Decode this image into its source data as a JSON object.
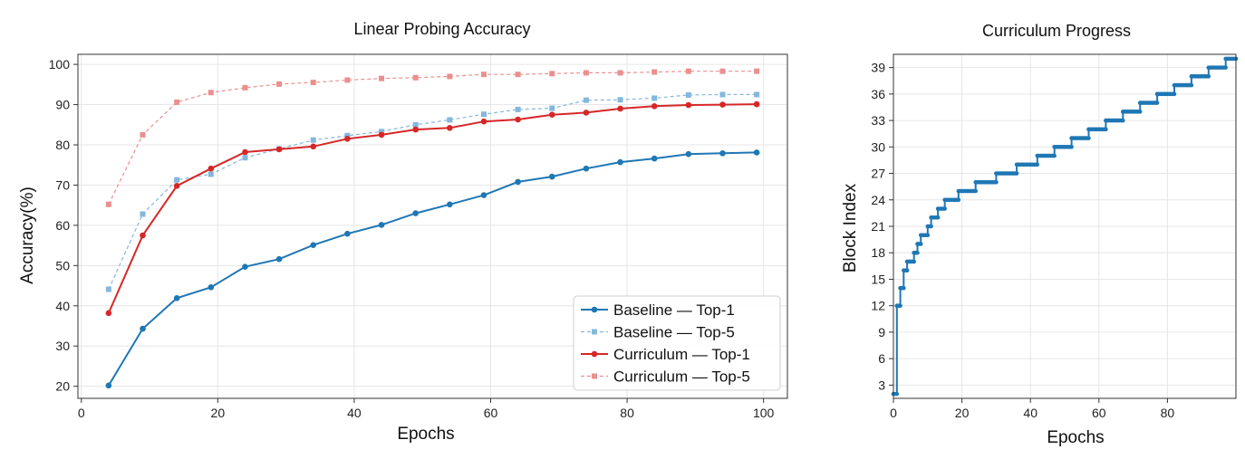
{
  "chart_data": [
    {
      "type": "line",
      "title": "Linear Probing Accuracy",
      "xlabel": "Epochs",
      "ylabel": "Accuracy(%)",
      "xlim": [
        -0.5,
        103.5
      ],
      "ylim": [
        17,
        102.5
      ],
      "xticks": [
        0,
        20,
        40,
        60,
        80,
        100
      ],
      "yticks": [
        20,
        30,
        40,
        50,
        60,
        70,
        80,
        90,
        100
      ],
      "grid": true,
      "legend_position": "bottom-right",
      "x": [
        4,
        9,
        14,
        19,
        24,
        29,
        34,
        39,
        44,
        49,
        54,
        59,
        64,
        69,
        74,
        79,
        84,
        89,
        94,
        99
      ],
      "series": [
        {
          "name": "Baseline — Top-1",
          "color": "#1f77b4",
          "style": "solid",
          "marker": "circle",
          "values": [
            20.2,
            34.3,
            41.9,
            44.6,
            49.7,
            51.6,
            55.1,
            57.9,
            60.1,
            63.0,
            65.2,
            67.5,
            70.8,
            72.1,
            74.1,
            75.7,
            76.6,
            77.7,
            77.9,
            78.1
          ]
        },
        {
          "name": "Baseline — Top-5",
          "color": "#84b7dc",
          "style": "dashed",
          "marker": "square",
          "values": [
            44.1,
            62.8,
            71.3,
            72.7,
            76.8,
            79.0,
            81.2,
            82.3,
            83.3,
            85.0,
            86.2,
            87.6,
            88.8,
            89.1,
            91.1,
            91.2,
            91.6,
            92.4,
            92.5,
            92.5
          ]
        },
        {
          "name": "Curriculum — Top-1",
          "color": "#d62728",
          "style": "solid",
          "marker": "circle",
          "values": [
            38.2,
            57.5,
            69.8,
            74.1,
            78.2,
            78.9,
            79.6,
            81.5,
            82.5,
            83.8,
            84.2,
            85.8,
            86.3,
            87.5,
            88.0,
            89.0,
            89.6,
            89.9,
            90.0,
            90.1
          ]
        },
        {
          "name": "Curriculum — Top-5",
          "color": "#ea8f8f",
          "style": "dashed",
          "marker": "square",
          "values": [
            65.2,
            82.5,
            90.6,
            93.0,
            94.2,
            95.1,
            95.5,
            96.1,
            96.5,
            96.7,
            97.0,
            97.5,
            97.5,
            97.7,
            97.9,
            97.9,
            98.1,
            98.3,
            98.3,
            98.3
          ]
        }
      ]
    },
    {
      "type": "line",
      "title": "Curriculum Progress",
      "xlabel": "Epochs",
      "ylabel": "Block Index",
      "xlim": [
        0,
        100
      ],
      "ylim": [
        1.5,
        40.5
      ],
      "xticks": [
        0,
        20,
        40,
        60,
        80
      ],
      "yticks": [
        3,
        6,
        9,
        12,
        15,
        18,
        21,
        24,
        27,
        30,
        33,
        36,
        39
      ],
      "grid": true,
      "step_marker_spacing": 0.5,
      "series": [
        {
          "name": "",
          "color": "#1f77b4",
          "style": "steps-post",
          "marker": "circle",
          "steps": [
            {
              "start": 0,
              "block": 2
            },
            {
              "start": 1,
              "block": 12
            },
            {
              "start": 2,
              "block": 14
            },
            {
              "start": 3,
              "block": 16
            },
            {
              "start": 4,
              "block": 17
            },
            {
              "start": 6,
              "block": 18
            },
            {
              "start": 7,
              "block": 19
            },
            {
              "start": 8,
              "block": 20
            },
            {
              "start": 10,
              "block": 21
            },
            {
              "start": 11,
              "block": 22
            },
            {
              "start": 13,
              "block": 23
            },
            {
              "start": 15,
              "block": 24
            },
            {
              "start": 19,
              "block": 25
            },
            {
              "start": 24,
              "block": 26
            },
            {
              "start": 30,
              "block": 27
            },
            {
              "start": 36,
              "block": 28
            },
            {
              "start": 42,
              "block": 29
            },
            {
              "start": 47,
              "block": 30
            },
            {
              "start": 52,
              "block": 31
            },
            {
              "start": 57,
              "block": 32
            },
            {
              "start": 62,
              "block": 33
            },
            {
              "start": 67,
              "block": 34
            },
            {
              "start": 72,
              "block": 35
            },
            {
              "start": 77,
              "block": 36
            },
            {
              "start": 82,
              "block": 37
            },
            {
              "start": 87,
              "block": 38
            },
            {
              "start": 92,
              "block": 39
            },
            {
              "start": 97,
              "block": 40
            }
          ],
          "x_end": 100
        }
      ]
    }
  ]
}
